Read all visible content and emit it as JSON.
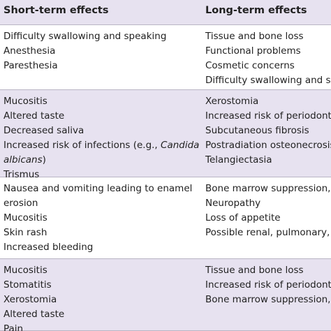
{
  "table": {
    "header": [
      "Short-term effects",
      "Long-term effects"
    ],
    "rows": [
      [
        [
          "Difficulty swallowing and speaking",
          "Anesthesia",
          "Paresthesia"
        ],
        [
          "Tissue and bone loss",
          "Functional problems",
          "Cosmetic concerns",
          "Difficulty swallowing and sp"
        ]
      ],
      [
        [
          "Mucositis",
          "Altered taste",
          "Decreased saliva",
          [
            "Increased risk of infections (e.g., ",
            {
              "italic": "Candida"
            }
          ],
          [
            {
              "italic": "albicans"
            },
            ")"
          ],
          "Trismus"
        ],
        [
          "Xerostomia",
          "Increased risk of periodonta",
          "Subcutaneous fibrosis",
          "Postradiation osteonecrosis",
          "Telangiectasia"
        ]
      ],
      [
        [
          "Nausea and vomiting leading to enamel",
          "erosion",
          "Mucositis",
          "Skin rash",
          "Increased bleeding"
        ],
        [
          "Bone marrow suppression, in",
          "Neuropathy",
          "Loss of appetite",
          "Possible renal, pulmonary, a"
        ]
      ],
      [
        [
          "Mucositis",
          "Stomatitis",
          "Xerostomia",
          "Altered taste",
          "Pain"
        ],
        [
          "Tissue and bone loss",
          "Increased risk of periodonta",
          "Bone marrow suppression, in"
        ]
      ]
    ]
  }
}
